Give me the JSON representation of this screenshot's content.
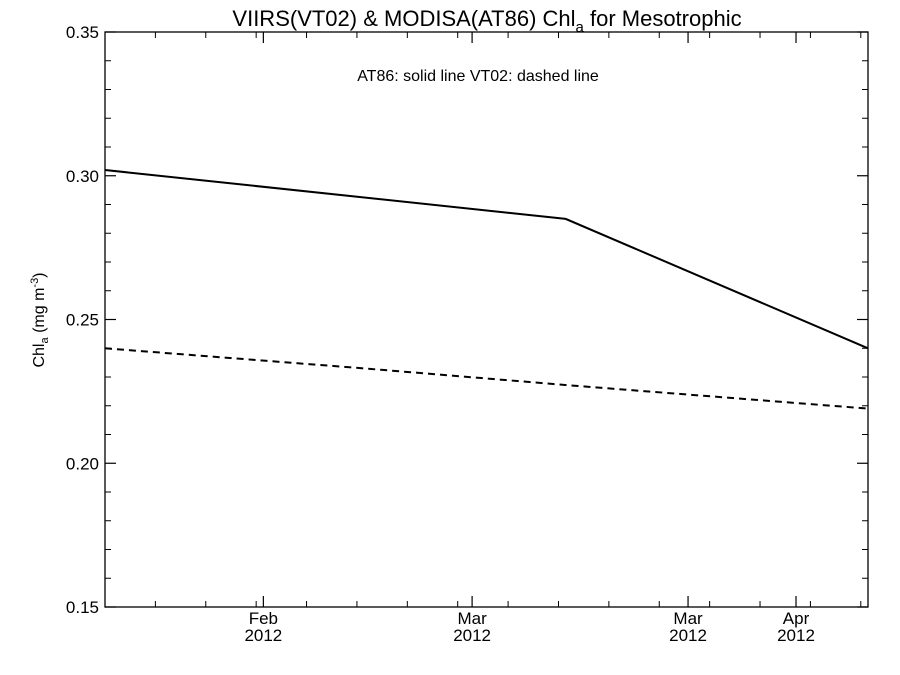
{
  "chart_data": {
    "type": "line",
    "title": {
      "main": "VIIRS(VT02) & MODISA(AT86)  Chl",
      "sub": "a",
      "tail": " for Mesotrophic"
    },
    "ylabel": {
      "main": "Chl",
      "sub": "a",
      "mid": " (mg m",
      "sup": "-3",
      "end": ")"
    },
    "annotation": "AT86: solid line   VT02: dashed line",
    "xlim": [
      "2012-01-10",
      "2012-04-25"
    ],
    "ylim": [
      0.15,
      0.35
    ],
    "yticks": [
      "0.15",
      "0.20",
      "0.25",
      "0.30",
      "0.35"
    ],
    "xticks": [
      {
        "date": "2012-02-01",
        "month": "Feb",
        "year": "2012"
      },
      {
        "date": "2012-03-01",
        "month": "Mar",
        "year": "2012"
      },
      {
        "date": "2012-03-31",
        "month": "Mar",
        "year": "2012"
      },
      {
        "date": "2012-04-15",
        "month": "Apr",
        "year": "2012"
      }
    ],
    "series": [
      {
        "style": "solid",
        "points": [
          {
            "date": "2012-01-10",
            "value": 0.302
          },
          {
            "date": "2012-03-14",
            "value": 0.285
          },
          {
            "date": "2012-04-25",
            "value": 0.24
          }
        ]
      },
      {
        "style": "dashed",
        "points": [
          {
            "date": "2012-01-10",
            "value": 0.24
          },
          {
            "date": "2012-02-15",
            "value": 0.233
          },
          {
            "date": "2012-03-15",
            "value": 0.227
          },
          {
            "date": "2012-04-25",
            "value": 0.219
          }
        ]
      }
    ]
  }
}
